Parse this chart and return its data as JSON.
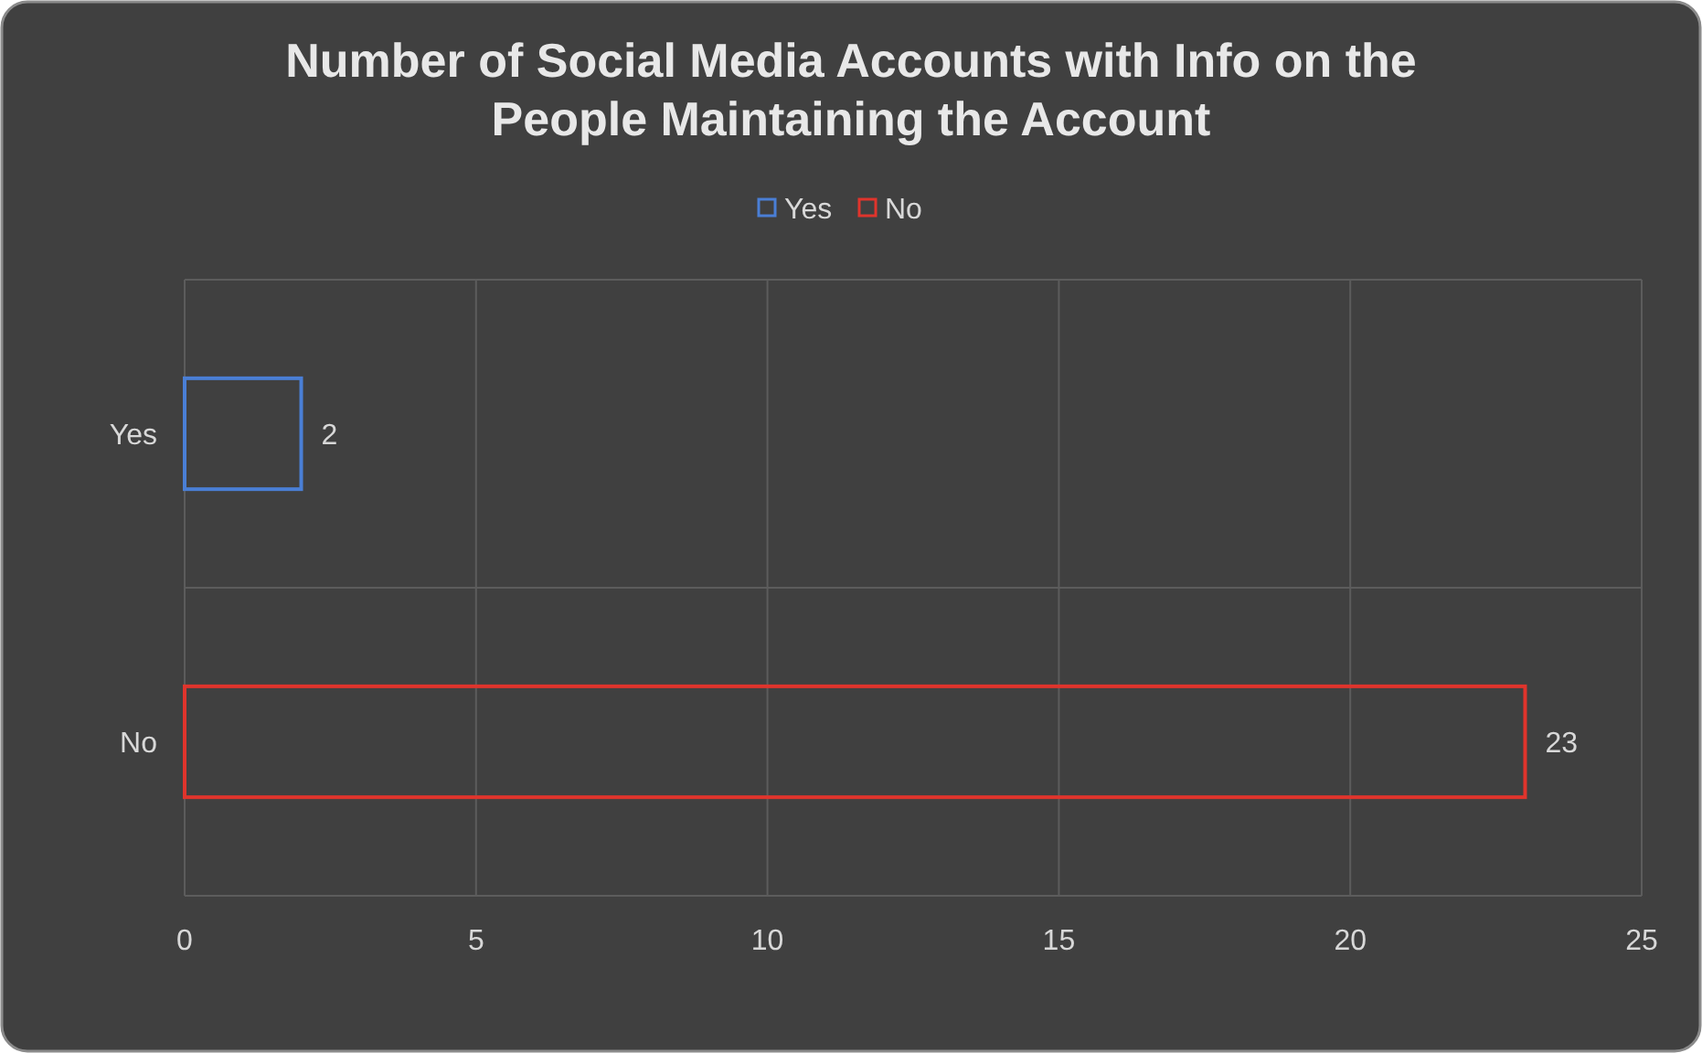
{
  "chart_data": {
    "type": "bar",
    "orientation": "horizontal",
    "title": "Number of Social Media Accounts with Info on the People Maintaining the Account",
    "categories": [
      "Yes",
      "No"
    ],
    "series": [
      {
        "name": "Yes",
        "color": "#4a7fd6",
        "values": [
          2,
          null
        ]
      },
      {
        "name": "No",
        "color": "#e0342c",
        "values": [
          null,
          23
        ]
      }
    ],
    "xlim": [
      0,
      25
    ],
    "xticks": [
      0,
      5,
      10,
      15,
      20,
      25
    ],
    "grid": true,
    "legend": "top",
    "data_labels": true
  }
}
